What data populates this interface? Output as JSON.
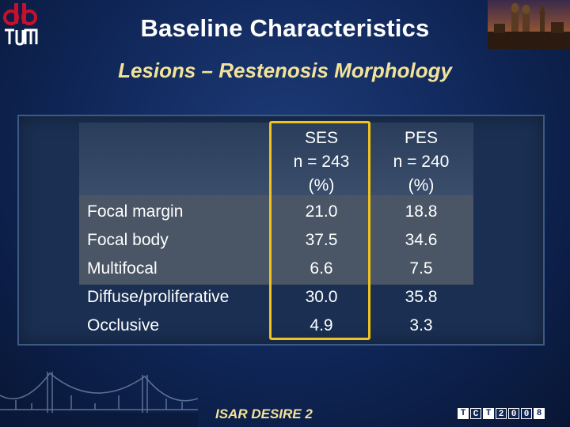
{
  "slide": {
    "title": "Baseline Characteristics",
    "subtitle": "Lesions – Restenosis Morphology",
    "footer": "ISAR DESIRE 2",
    "accent_color": "#f2c21a"
  },
  "logos": {
    "institution": "TUM",
    "conference_letters": [
      "T",
      "C",
      "T",
      "2",
      "0",
      "0",
      "8"
    ]
  },
  "table": {
    "columns": [
      {
        "name": "SES",
        "n": "n = 243",
        "unit": "(%)"
      },
      {
        "name": "PES",
        "n": "n = 240",
        "unit": "(%)"
      }
    ],
    "rows": [
      {
        "label": "Focal margin",
        "ses": "21.0",
        "pes": "18.8"
      },
      {
        "label": "Focal body",
        "ses": "37.5",
        "pes": "34.6"
      },
      {
        "label": "Multifocal",
        "ses": "6.6",
        "pes": "7.5"
      },
      {
        "label": "Diffuse/proliferative",
        "ses": "30.0",
        "pes": "35.8"
      },
      {
        "label": "Occlusive",
        "ses": "4.9",
        "pes": "3.3"
      }
    ]
  }
}
